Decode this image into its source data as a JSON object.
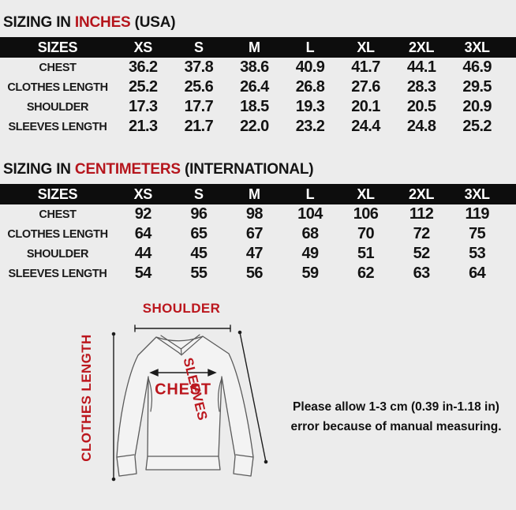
{
  "theme": {
    "page_bg": "#ececec",
    "header_bar_bg": "#0d0d0d",
    "accent_red": "#b5151c",
    "diagram_label_red": "#bb161d"
  },
  "inches_section": {
    "title_prefix": "SIZING IN",
    "title_highlight": "INCHES",
    "title_suffix": "(USA)",
    "table": {
      "header": [
        "SIZES",
        "XS",
        "S",
        "M",
        "L",
        "XL",
        "2XL",
        "3XL"
      ],
      "rows": [
        {
          "label": "CHEST",
          "values": [
            "36.2",
            "37.8",
            "38.6",
            "40.9",
            "41.7",
            "44.1",
            "46.9"
          ]
        },
        {
          "label": "CLOTHES LENGTH",
          "values": [
            "25.2",
            "25.6",
            "26.4",
            "26.8",
            "27.6",
            "28.3",
            "29.5"
          ]
        },
        {
          "label": "SHOULDER",
          "values": [
            "17.3",
            "17.7",
            "18.5",
            "19.3",
            "20.1",
            "20.5",
            "20.9"
          ]
        },
        {
          "label": "SLEEVES LENGTH",
          "values": [
            "21.3",
            "21.7",
            "22.0",
            "23.2",
            "24.4",
            "24.8",
            "25.2"
          ]
        }
      ]
    }
  },
  "cm_section": {
    "title_prefix": "SIZING IN",
    "title_highlight": "CENTIMETERS",
    "title_suffix": "(INTERNATIONAL)",
    "table": {
      "header": [
        "SIZES",
        "XS",
        "S",
        "M",
        "L",
        "XL",
        "2XL",
        "3XL"
      ],
      "rows": [
        {
          "label": "CHEST",
          "values": [
            "92",
            "96",
            "98",
            "104",
            "106",
            "112",
            "119"
          ]
        },
        {
          "label": "CLOTHES LENGTH",
          "values": [
            "64",
            "65",
            "67",
            "68",
            "70",
            "72",
            "75"
          ]
        },
        {
          "label": "SHOULDER",
          "values": [
            "44",
            "45",
            "47",
            "49",
            "51",
            "52",
            "53"
          ]
        },
        {
          "label": "SLEEVES LENGTH",
          "values": [
            "54",
            "55",
            "56",
            "59",
            "62",
            "63",
            "64"
          ]
        }
      ]
    }
  },
  "diagram": {
    "shoulder_label": "SHOULDER",
    "clothes_length_label": "CLOTHES LENGTH",
    "chest_label": "CHEST",
    "sleeves_label": "SLEEVES"
  },
  "note": {
    "line1": "Please allow 1-3 cm (0.39 in-1.18 in)",
    "line2": "error because of manual measuring."
  }
}
